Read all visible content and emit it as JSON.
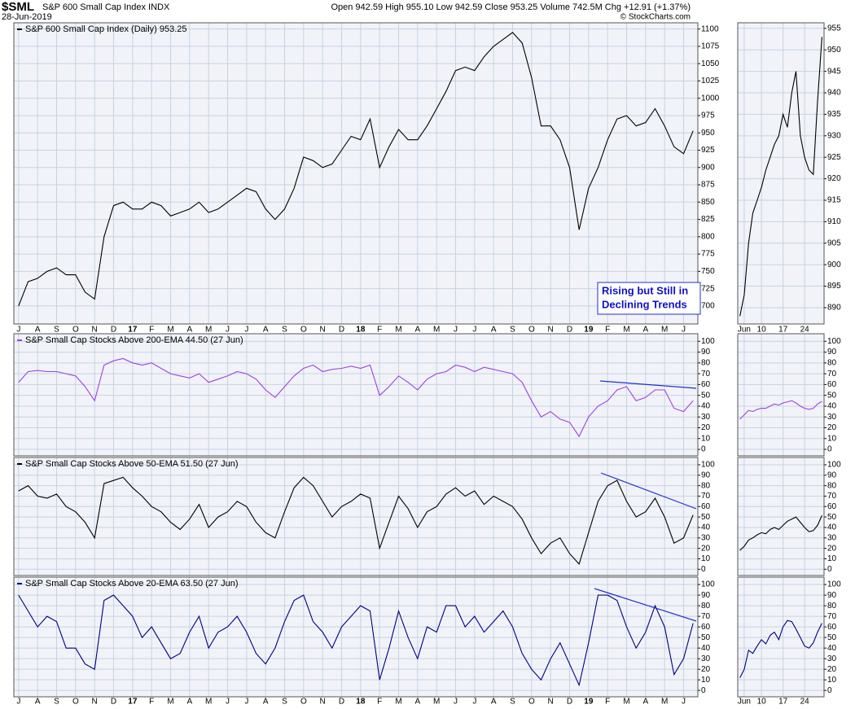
{
  "header": {
    "symbol": "$SML",
    "name": "S&P 600 Small Cap Index INDX",
    "date": "28-Jun-2019",
    "stats": "Open 942.59  High 955.10  Low 942.59  Close 953.25  Volume 742.5M  Chg +12.91 (+1.37%)",
    "credit": "© StockCharts.com"
  },
  "annotation": [
    "Rising but Still in",
    "Declining Trends"
  ],
  "chart_data": [
    {
      "type": "line",
      "title": "S&P 600 Small Cap Index (Daily) 953.25",
      "categories": [
        "J",
        null,
        "A",
        null,
        "S",
        null,
        "O",
        null,
        "N",
        null,
        "D",
        null,
        "17",
        null,
        "F",
        null,
        "M",
        null,
        "A",
        null,
        "M",
        null,
        "J",
        null,
        "J",
        null,
        "A",
        null,
        "S",
        null,
        "O",
        null,
        "N",
        null,
        "D",
        null,
        "18",
        null,
        "F",
        null,
        "M",
        null,
        "A",
        null,
        "M",
        null,
        "J",
        null,
        "J",
        null,
        "A",
        null,
        "S",
        null,
        "O",
        null,
        "N",
        null,
        "D",
        null,
        "19",
        null,
        "F",
        null,
        "M",
        null,
        "A",
        null,
        "M",
        null,
        "J",
        null
      ],
      "series": [
        {
          "color": "#000000",
          "values": [
            700,
            735,
            740,
            750,
            755,
            745,
            745,
            720,
            710,
            800,
            845,
            850,
            840,
            840,
            850,
            845,
            830,
            835,
            840,
            850,
            835,
            840,
            850,
            860,
            870,
            865,
            840,
            825,
            840,
            870,
            915,
            910,
            900,
            905,
            925,
            945,
            940,
            970,
            900,
            930,
            955,
            940,
            940,
            960,
            985,
            1010,
            1040,
            1045,
            1040,
            1060,
            1075,
            1085,
            1095,
            1080,
            1030,
            960,
            960,
            940,
            900,
            810,
            870,
            900,
            940,
            970,
            975,
            960,
            965,
            985,
            960,
            930,
            920,
            953
          ]
        }
      ],
      "ylim": [
        674,
        1109
      ],
      "yticks": [
        700,
        725,
        750,
        775,
        800,
        825,
        850,
        875,
        900,
        925,
        950,
        975,
        1000,
        1025,
        1050,
        1075,
        1100
      ],
      "grid": true
    },
    {
      "type": "line",
      "categories": [
        null,
        "Jun",
        null,
        null,
        null,
        "10",
        null,
        null,
        null,
        null,
        "17",
        null,
        null,
        null,
        null,
        "24",
        null,
        null,
        null,
        null
      ],
      "series": [
        {
          "color": "#000000",
          "values": [
            888,
            893,
            905,
            912,
            915,
            918,
            922,
            925,
            928,
            930,
            935,
            932,
            940,
            945,
            930,
            925,
            922,
            921,
            938,
            953
          ]
        }
      ],
      "ylim": [
        886.2,
        956.3
      ],
      "yticks": [
        890,
        895,
        900,
        905,
        910,
        915,
        920,
        925,
        930,
        935,
        940,
        945,
        950,
        955
      ],
      "grid": true
    },
    {
      "type": "line",
      "title": "S&P Small Cap Stocks Above 200-EMA 44.50 (27 Jun)",
      "series": [
        {
          "color": "#a040e0",
          "values": [
            62,
            72,
            73,
            72,
            72,
            70,
            68,
            58,
            45,
            78,
            82,
            84,
            80,
            78,
            80,
            75,
            70,
            68,
            66,
            70,
            62,
            65,
            68,
            72,
            70,
            65,
            55,
            48,
            58,
            68,
            75,
            78,
            72,
            74,
            75,
            77,
            75,
            78,
            50,
            58,
            68,
            62,
            55,
            65,
            70,
            72,
            78,
            76,
            72,
            76,
            74,
            72,
            70,
            62,
            45,
            30,
            35,
            28,
            25,
            12,
            30,
            40,
            45,
            55,
            58,
            45,
            48,
            55,
            55,
            38,
            35,
            45
          ]
        }
      ],
      "ylim": [
        -6,
        107
      ],
      "yticks": [
        0,
        10,
        20,
        30,
        40,
        50,
        60,
        70,
        80,
        90,
        100
      ],
      "grid": true
    },
    {
      "type": "line",
      "series": [
        {
          "color": "#a040e0",
          "values": [
            28,
            32,
            36,
            35,
            37,
            38,
            38,
            40,
            42,
            41,
            43,
            44,
            45,
            43,
            40,
            38,
            37,
            38,
            42,
            44.5
          ]
        }
      ],
      "ylim": [
        -6,
        107
      ],
      "yticks": [
        0,
        10,
        20,
        30,
        40,
        50,
        60,
        70,
        80,
        90,
        100
      ],
      "grid": true
    },
    {
      "type": "line",
      "title": "S&P Small Cap Stocks Above 50-EMA 51.50 (27 Jun)",
      "series": [
        {
          "color": "#000000",
          "values": [
            75,
            80,
            70,
            68,
            72,
            60,
            55,
            45,
            30,
            82,
            85,
            88,
            78,
            70,
            60,
            55,
            45,
            38,
            48,
            62,
            40,
            50,
            55,
            65,
            60,
            45,
            35,
            30,
            55,
            78,
            88,
            80,
            65,
            50,
            60,
            65,
            72,
            68,
            20,
            45,
            70,
            58,
            40,
            55,
            60,
            72,
            78,
            70,
            75,
            62,
            70,
            65,
            60,
            48,
            30,
            15,
            25,
            30,
            15,
            5,
            35,
            65,
            80,
            85,
            65,
            50,
            55,
            68,
            50,
            25,
            30,
            52
          ]
        }
      ],
      "ylim": [
        -6,
        107
      ],
      "yticks": [
        0,
        10,
        20,
        30,
        40,
        50,
        60,
        70,
        80,
        90,
        100
      ],
      "grid": true
    },
    {
      "type": "line",
      "series": [
        {
          "color": "#000000",
          "values": [
            18,
            22,
            28,
            30,
            33,
            35,
            34,
            38,
            40,
            38,
            42,
            46,
            48,
            50,
            45,
            40,
            36,
            37,
            42,
            51.5
          ]
        }
      ],
      "ylim": [
        -6,
        107
      ],
      "yticks": [
        0,
        10,
        20,
        30,
        40,
        50,
        60,
        70,
        80,
        90,
        100
      ],
      "grid": true
    },
    {
      "type": "line",
      "title": "S&P Small Cap Stocks Above 20-EMA 63.50 (27 Jun)",
      "series": [
        {
          "color": "#000080",
          "values": [
            90,
            75,
            60,
            70,
            65,
            40,
            40,
            25,
            20,
            85,
            90,
            80,
            70,
            50,
            60,
            45,
            30,
            35,
            55,
            70,
            40,
            55,
            60,
            70,
            55,
            35,
            25,
            40,
            65,
            85,
            90,
            65,
            55,
            40,
            60,
            70,
            80,
            75,
            10,
            40,
            75,
            50,
            30,
            60,
            55,
            80,
            80,
            60,
            70,
            55,
            65,
            75,
            60,
            35,
            20,
            10,
            30,
            45,
            25,
            5,
            45,
            90,
            90,
            85,
            60,
            40,
            55,
            80,
            60,
            15,
            30,
            63.5
          ]
        }
      ],
      "ylim": [
        -6,
        107
      ],
      "yticks": [
        0,
        10,
        20,
        30,
        40,
        50,
        60,
        70,
        80,
        90,
        100
      ],
      "grid": true
    },
    {
      "type": "line",
      "series": [
        {
          "color": "#000080",
          "values": [
            12,
            20,
            38,
            35,
            42,
            48,
            44,
            52,
            55,
            48,
            60,
            66,
            65,
            58,
            50,
            42,
            40,
            45,
            55,
            63.5
          ]
        }
      ],
      "ylim": [
        -6,
        107
      ],
      "yticks": [
        0,
        10,
        20,
        30,
        40,
        50,
        60,
        70,
        80,
        90,
        100
      ],
      "grid": true
    }
  ]
}
